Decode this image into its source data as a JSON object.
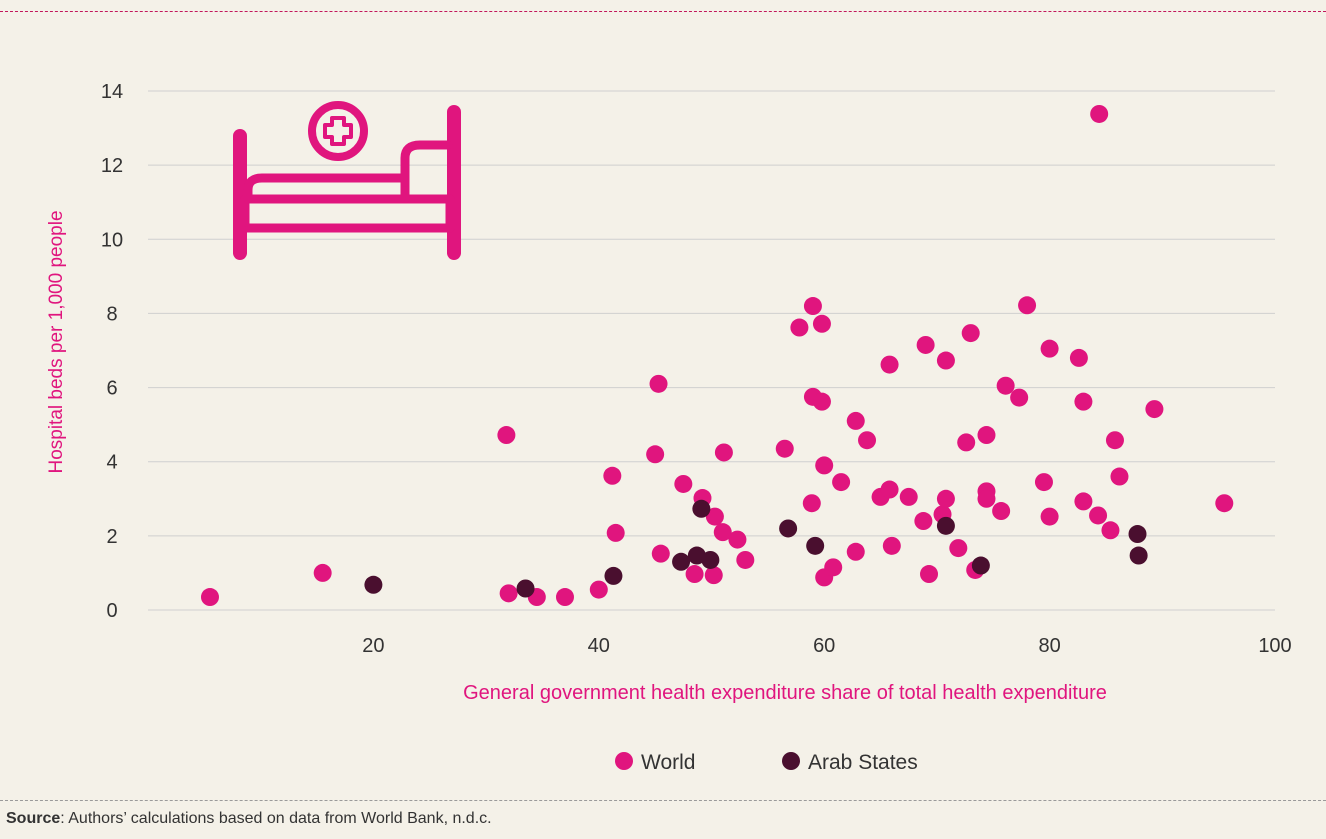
{
  "source": {
    "label": "Source",
    "text": ": Authors’ calculations based on data from World Bank, n.d.c."
  },
  "colors": {
    "world": "#e0157e",
    "arab": "#4a0f2f",
    "grid": "#cfcfcf",
    "text": "#333333",
    "accent": "#e0157e"
  },
  "icon": "hospital-bed-icon",
  "chart_data": {
    "type": "scatter",
    "title": "",
    "xlabel": "General government health expenditure share of total health expenditure",
    "ylabel": "Hospital beds per 1,000 people",
    "xlim": [
      0,
      100
    ],
    "ylim": [
      0,
      14
    ],
    "xticks": [
      20,
      40,
      60,
      80,
      100
    ],
    "yticks": [
      0,
      2,
      4,
      6,
      8,
      10,
      12,
      14
    ],
    "grid": "horizontal",
    "legend_position": "bottom",
    "series": [
      {
        "name": "World",
        "color": "#e0157e",
        "points": [
          [
            5.5,
            0.35
          ],
          [
            15.5,
            1.0
          ],
          [
            32,
            0.45
          ],
          [
            31.8,
            4.72
          ],
          [
            34.5,
            0.35
          ],
          [
            37,
            0.35
          ],
          [
            40,
            0.55
          ],
          [
            41.2,
            3.62
          ],
          [
            41.5,
            2.08
          ],
          [
            45,
            4.2
          ],
          [
            45.3,
            6.1
          ],
          [
            45.5,
            1.52
          ],
          [
            47.5,
            3.4
          ],
          [
            48.5,
            0.97
          ],
          [
            49.2,
            3.02
          ],
          [
            50.3,
            2.52
          ],
          [
            50.2,
            0.94
          ],
          [
            51,
            2.1
          ],
          [
            51.1,
            4.25
          ],
          [
            52.3,
            1.9
          ],
          [
            53,
            1.35
          ],
          [
            56.5,
            4.35
          ],
          [
            57.8,
            7.62
          ],
          [
            59,
            8.2
          ],
          [
            59,
            5.75
          ],
          [
            59.8,
            5.62
          ],
          [
            59.8,
            7.72
          ],
          [
            60,
            3.9
          ],
          [
            58.9,
            2.88
          ],
          [
            60,
            0.88
          ],
          [
            60.8,
            1.15
          ],
          [
            61.5,
            3.45
          ],
          [
            62.8,
            5.1
          ],
          [
            63.8,
            4.58
          ],
          [
            62.8,
            1.57
          ],
          [
            65,
            3.05
          ],
          [
            65.8,
            6.62
          ],
          [
            65.8,
            3.25
          ],
          [
            66,
            1.73
          ],
          [
            67.5,
            3.05
          ],
          [
            68.8,
            2.4
          ],
          [
            69,
            7.15
          ],
          [
            69.3,
            0.97
          ],
          [
            70.5,
            2.58
          ],
          [
            70.8,
            6.73
          ],
          [
            70.8,
            3.0
          ],
          [
            71.9,
            1.67
          ],
          [
            72.6,
            4.52
          ],
          [
            73,
            7.47
          ],
          [
            73.4,
            1.08
          ],
          [
            74.4,
            4.72
          ],
          [
            74.4,
            3.2
          ],
          [
            74.4,
            3.0
          ],
          [
            75.7,
            2.67
          ],
          [
            76.1,
            6.05
          ],
          [
            77.3,
            5.73
          ],
          [
            78.0,
            8.22
          ],
          [
            79.5,
            3.45
          ],
          [
            80.0,
            7.05
          ],
          [
            80.0,
            2.52
          ],
          [
            82.6,
            6.8
          ],
          [
            83.0,
            5.62
          ],
          [
            83.0,
            2.93
          ],
          [
            84.3,
            2.55
          ],
          [
            84.4,
            13.38
          ],
          [
            85.4,
            2.15
          ],
          [
            85.8,
            4.58
          ],
          [
            86.2,
            3.6
          ],
          [
            89.3,
            5.42
          ],
          [
            95.5,
            2.88
          ]
        ]
      },
      {
        "name": "Arab States",
        "color": "#4a0f2f",
        "points": [
          [
            20,
            0.68
          ],
          [
            33.5,
            0.58
          ],
          [
            41.3,
            0.92
          ],
          [
            47.3,
            1.3
          ],
          [
            48.7,
            1.47
          ],
          [
            49.1,
            2.73
          ],
          [
            49.9,
            1.35
          ],
          [
            56.8,
            2.2
          ],
          [
            59.2,
            1.73
          ],
          [
            70.8,
            2.27
          ],
          [
            73.9,
            1.2
          ],
          [
            87.8,
            2.05
          ],
          [
            87.9,
            1.47
          ]
        ]
      }
    ]
  }
}
